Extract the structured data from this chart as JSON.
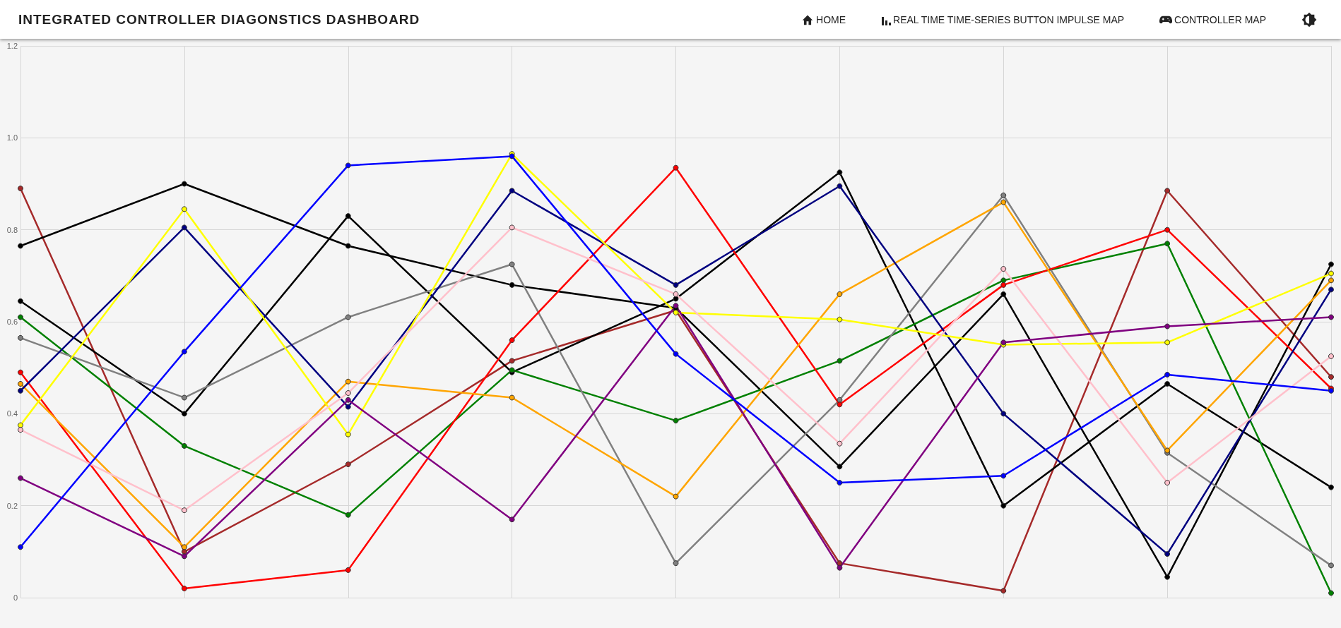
{
  "chart_data": {
    "type": "line",
    "title": "INTEGRATED CONTROLLER DIAGONSTICS DASHBOARD",
    "annotations": [
      "HOME",
      "REAL TIME TIME-SERIES BUTTON IMPULSE MAP",
      "CONTROLLER MAP"
    ],
    "categories": [
      null,
      null,
      null,
      null,
      null,
      null,
      null,
      null,
      null
    ],
    "series": [
      {
        "color": "#a52a2a",
        "values": [
          0.89,
          0.1,
          0.29,
          0.515,
          0.625,
          0.075,
          0.015,
          0.885,
          0.48
        ]
      },
      {
        "color": "#000000",
        "values": [
          0.765,
          0.9,
          0.765,
          0.68,
          0.63,
          0.285,
          0.66,
          0.045,
          0.725
        ]
      },
      {
        "color": "#000000",
        "values": [
          0.645,
          0.4,
          0.83,
          0.49,
          0.65,
          0.925,
          0.2,
          0.465,
          0.24
        ]
      },
      {
        "color": "#008000",
        "values": [
          0.61,
          0.33,
          0.18,
          0.495,
          0.385,
          0.515,
          0.69,
          0.77,
          0.01
        ]
      },
      {
        "color": "#808080",
        "values": [
          0.565,
          0.435,
          0.61,
          0.725,
          0.075,
          0.43,
          0.875,
          0.315,
          0.07
        ]
      },
      {
        "color": "#ff0000",
        "values": [
          0.49,
          0.02,
          0.06,
          0.56,
          0.935,
          0.42,
          0.68,
          0.8,
          0.455
        ]
      },
      {
        "color": "#ffa500",
        "values": [
          0.465,
          0.11,
          0.47,
          0.435,
          0.22,
          0.66,
          0.86,
          0.32,
          0.69
        ]
      },
      {
        "color": "#000080",
        "values": [
          0.45,
          0.805,
          0.415,
          0.885,
          0.68,
          0.895,
          0.4,
          0.095,
          0.67
        ]
      },
      {
        "color": "#ffff00",
        "values": [
          0.375,
          0.845,
          0.355,
          0.965,
          0.62,
          0.605,
          0.55,
          0.555,
          0.705
        ]
      },
      {
        "color": "#ffc0cb",
        "values": [
          0.365,
          0.19,
          0.445,
          0.805,
          0.66,
          0.335,
          0.715,
          0.25,
          0.525
        ]
      },
      {
        "color": "#800080",
        "values": [
          0.26,
          0.09,
          0.43,
          0.17,
          0.635,
          0.065,
          0.555,
          0.59,
          0.61
        ]
      },
      {
        "color": "#0000ff",
        "values": [
          0.11,
          0.535,
          0.94,
          0.96,
          0.53,
          0.25,
          0.265,
          0.485,
          0.45
        ]
      }
    ],
    "ylim": [
      0,
      1.2
    ],
    "yticks": [
      0,
      0.2,
      0.4,
      0.6,
      0.8,
      {
        "value": 1,
        "label": "1.0"
      },
      1.2
    ],
    "grid": true,
    "marker": "circle",
    "line_style": "solid",
    "tick_labels": "y"
  }
}
